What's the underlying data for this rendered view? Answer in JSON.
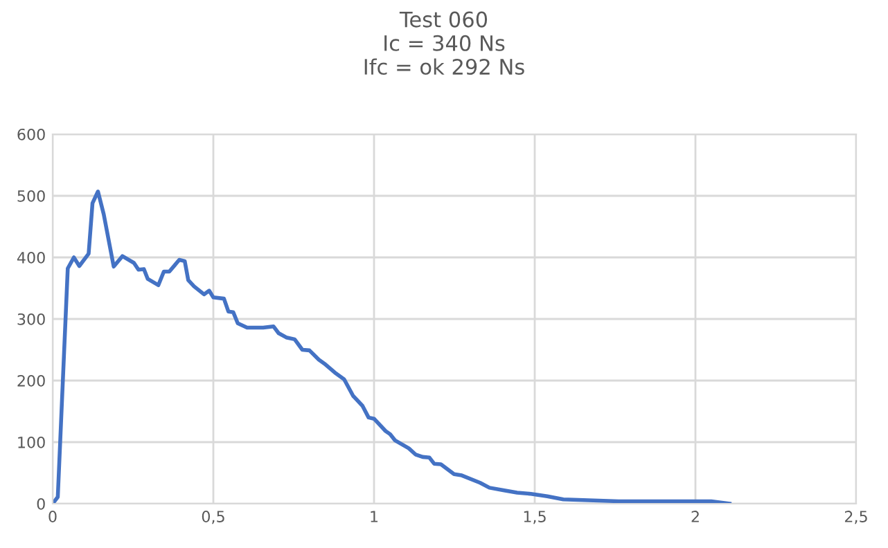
{
  "chart_data": {
    "type": "line",
    "title": "Test 060\nIc = 340 Ns\nIfc = ok 292 Ns",
    "x": [
      0,
      0.016,
      0.047,
      0.066,
      0.083,
      0.112,
      0.124,
      0.141,
      0.159,
      0.19,
      0.217,
      0.253,
      0.267,
      0.284,
      0.296,
      0.329,
      0.346,
      0.363,
      0.394,
      0.411,
      0.422,
      0.44,
      0.471,
      0.487,
      0.5,
      0.533,
      0.547,
      0.562,
      0.576,
      0.605,
      0.655,
      0.687,
      0.703,
      0.727,
      0.753,
      0.777,
      0.799,
      0.828,
      0.849,
      0.878,
      0.907,
      0.935,
      0.964,
      0.983,
      1.0,
      1.036,
      1.05,
      1.065,
      1.108,
      1.129,
      1.151,
      1.172,
      1.187,
      1.208,
      1.249,
      1.273,
      1.33,
      1.359,
      1.402,
      1.445,
      1.488,
      1.539,
      1.589,
      1.761,
      2.049,
      2.106
    ],
    "series": [
      {
        "color": "#4472c4",
        "values": [
          0,
          11,
          382,
          400,
          386,
          406,
          488,
          507,
          470,
          385,
          402,
          391,
          380,
          381,
          365,
          355,
          377,
          377,
          396,
          394,
          363,
          353,
          340,
          346,
          335,
          333,
          312,
          311,
          293,
          286,
          286,
          288,
          277,
          270,
          267,
          250,
          249,
          234,
          226,
          213,
          202,
          175,
          159,
          140,
          138,
          118,
          113,
          103,
          90,
          80,
          76,
          75,
          65,
          64,
          48,
          46,
          34,
          26,
          22,
          18,
          16,
          12,
          7,
          4,
          4,
          0
        ]
      }
    ],
    "xlim": [
      0,
      2.5
    ],
    "xticks": [
      0,
      {
        "value": 0.5,
        "label": "0,5"
      },
      1,
      {
        "value": 1.5,
        "label": "1,5"
      },
      2,
      {
        "value": 2.5,
        "label": "2,5"
      }
    ],
    "ylim": [
      0,
      600
    ],
    "yticks": [
      0,
      100,
      200,
      300,
      400,
      500,
      600
    ],
    "grid": true,
    "legend": false,
    "marker": "none",
    "line_style": "solid"
  }
}
